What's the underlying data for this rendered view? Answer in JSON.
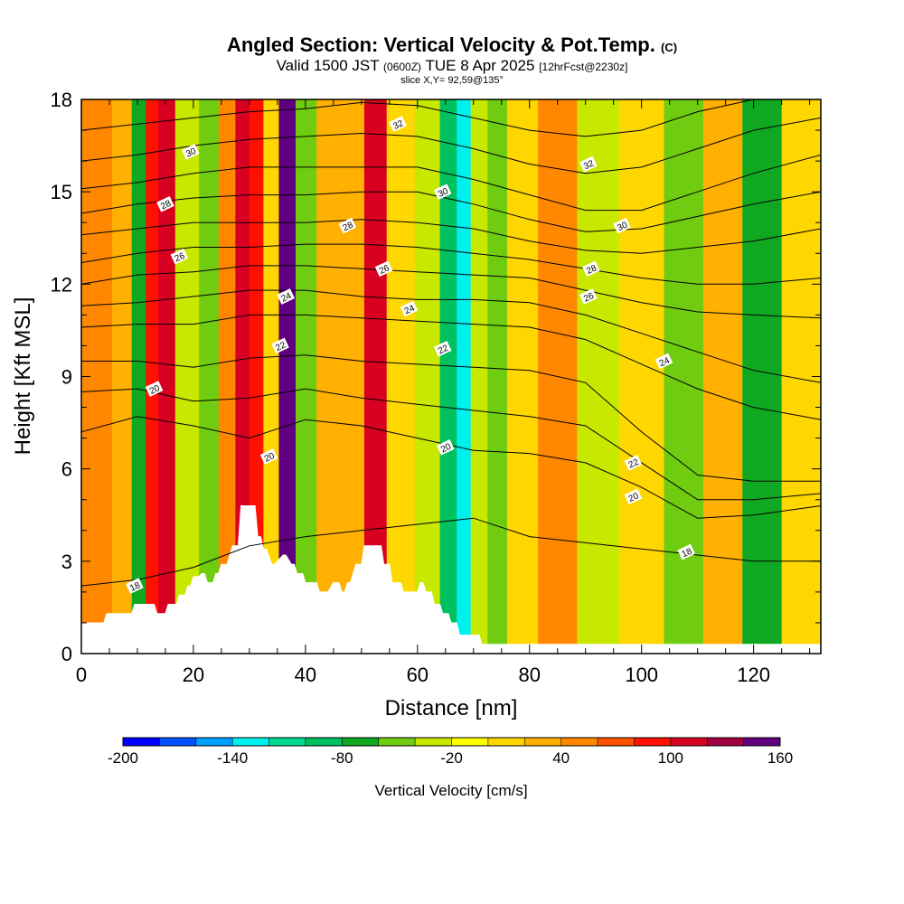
{
  "header": {
    "title": "Angled Section: Vertical Velocity & Pot.Temp.",
    "title_tag": "(C)",
    "valid_a": "Valid 1500 JST",
    "valid_b": "(0600Z)",
    "valid_c": "TUE 8 Apr 2025",
    "valid_d": "[12hrFcst@2230z]",
    "slice": "slice X,Y= 92,59@135°"
  },
  "chart_data": {
    "type": "heatmap",
    "xlabel": "Distance [nm]",
    "ylabel": "Height [Kft MSL]",
    "xlim": [
      0,
      132
    ],
    "ylim": [
      0,
      18
    ],
    "x_ticks": [
      0,
      20,
      40,
      60,
      80,
      100,
      120
    ],
    "y_ticks": [
      0,
      3,
      6,
      9,
      12,
      15,
      18
    ],
    "colorbar": {
      "title": "Vertical Velocity [cm/s]",
      "min": -200,
      "max": 160,
      "step": 20,
      "tick_labels": [
        -200,
        -140,
        -80,
        -20,
        40,
        100,
        160
      ],
      "colors": [
        "#0000ff",
        "#0050ff",
        "#00a0ff",
        "#00f0f0",
        "#00d890",
        "#00c060",
        "#10a820",
        "#70cc10",
        "#c8e800",
        "#ffff00",
        "#ffd700",
        "#ffb000",
        "#ff8800",
        "#ff5000",
        "#ff1000",
        "#d80020",
        "#a00040",
        "#600080"
      ]
    },
    "vertical_velocity_columns": [
      {
        "x": 3,
        "w_cm_s": 40
      },
      {
        "x": 8,
        "w_cm_s": 20
      },
      {
        "x": 10,
        "w_cm_s": -70
      },
      {
        "x": 13,
        "w_cm_s": 90
      },
      {
        "x": 14.5,
        "w_cm_s": 110
      },
      {
        "x": 19,
        "w_cm_s": -40
      },
      {
        "x": 23,
        "w_cm_s": -60
      },
      {
        "x": 26,
        "w_cm_s": 40
      },
      {
        "x": 29,
        "w_cm_s": 100
      },
      {
        "x": 31,
        "w_cm_s": 90
      },
      {
        "x": 34,
        "w_cm_s": 10
      },
      {
        "x": 36.5,
        "w_cm_s": 150
      },
      {
        "x": 40,
        "w_cm_s": -60
      },
      {
        "x": 44,
        "w_cm_s": 20
      },
      {
        "x": 49,
        "w_cm_s": 30
      },
      {
        "x": 52,
        "w_cm_s": 110
      },
      {
        "x": 57,
        "w_cm_s": 10
      },
      {
        "x": 62,
        "w_cm_s": -30
      },
      {
        "x": 66,
        "w_cm_s": -90
      },
      {
        "x": 68,
        "w_cm_s": -130
      },
      {
        "x": 71,
        "w_cm_s": -40
      },
      {
        "x": 74,
        "w_cm_s": -60
      },
      {
        "x": 78,
        "w_cm_s": 10
      },
      {
        "x": 85,
        "w_cm_s": 40
      },
      {
        "x": 92,
        "w_cm_s": -30
      },
      {
        "x": 100,
        "w_cm_s": 0
      },
      {
        "x": 108,
        "w_cm_s": -50
      },
      {
        "x": 114,
        "w_cm_s": 20
      },
      {
        "x": 122,
        "w_cm_s": -80
      },
      {
        "x": 128,
        "w_cm_s": 10
      }
    ],
    "potential_temperature_contours": [
      {
        "value": 18,
        "x": [
          0,
          10,
          20,
          30,
          40,
          50,
          60,
          70,
          80,
          90,
          100,
          110,
          120,
          132
        ],
        "y": [
          2.2,
          2.4,
          2.8,
          3.5,
          3.8,
          4.0,
          4.2,
          4.4,
          3.8,
          3.6,
          3.4,
          3.2,
          3.0,
          3.0
        ]
      },
      {
        "value": 20,
        "x": [
          0,
          10,
          20,
          30,
          40,
          50,
          60,
          70,
          80,
          90,
          100,
          110,
          120,
          132
        ],
        "y": [
          7.2,
          7.7,
          7.4,
          7.0,
          7.6,
          7.4,
          7.0,
          6.6,
          6.5,
          6.2,
          5.4,
          4.4,
          4.5,
          4.8
        ]
      },
      {
        "value": 20,
        "x": [
          0,
          10,
          20,
          30,
          40,
          50,
          60,
          70,
          80,
          90,
          100,
          110,
          120,
          132
        ],
        "y": [
          8.5,
          8.6,
          8.2,
          8.3,
          8.6,
          8.3,
          8.1,
          7.9,
          7.7,
          7.4,
          6.2,
          5.0,
          5.0,
          5.2
        ]
      },
      {
        "value": 22,
        "x": [
          0,
          10,
          20,
          30,
          40,
          50,
          60,
          70,
          80,
          90,
          100,
          110,
          120,
          132
        ],
        "y": [
          9.5,
          9.5,
          9.3,
          9.6,
          9.7,
          9.5,
          9.4,
          9.3,
          9.2,
          8.8,
          7.2,
          5.8,
          5.6,
          5.6
        ]
      },
      {
        "value": 24,
        "x": [
          0,
          10,
          20,
          30,
          40,
          50,
          60,
          70,
          80,
          90,
          100,
          110,
          120,
          132
        ],
        "y": [
          10.6,
          10.7,
          10.7,
          11.0,
          11.0,
          10.9,
          10.8,
          10.7,
          10.6,
          10.2,
          9.4,
          8.6,
          8.0,
          7.6
        ]
      },
      {
        "value": 24,
        "x": [
          0,
          10,
          20,
          30,
          40,
          50,
          60,
          70,
          80,
          90,
          100,
          110,
          120,
          132
        ],
        "y": [
          11.3,
          11.4,
          11.6,
          11.8,
          11.8,
          11.6,
          11.5,
          11.5,
          11.4,
          11.0,
          10.4,
          9.8,
          9.2,
          8.8
        ]
      },
      {
        "value": 26,
        "x": [
          0,
          10,
          20,
          30,
          40,
          50,
          60,
          70,
          80,
          90,
          100,
          110,
          120,
          132
        ],
        "y": [
          12.0,
          12.3,
          12.4,
          12.6,
          12.6,
          12.5,
          12.4,
          12.3,
          12.2,
          11.8,
          11.4,
          11.1,
          11.0,
          10.9
        ]
      },
      {
        "value": 26,
        "x": [
          0,
          10,
          20,
          30,
          40,
          50,
          60,
          70,
          80,
          90,
          100,
          110,
          120,
          132
        ],
        "y": [
          12.7,
          13.0,
          13.2,
          13.2,
          13.3,
          13.3,
          13.2,
          13.0,
          12.8,
          12.5,
          12.2,
          12.0,
          12.0,
          12.2
        ]
      },
      {
        "value": 28,
        "x": [
          0,
          10,
          20,
          30,
          40,
          50,
          60,
          70,
          80,
          90,
          100,
          110,
          120,
          132
        ],
        "y": [
          13.6,
          13.8,
          14.0,
          14.0,
          14.0,
          14.1,
          14.0,
          13.8,
          13.4,
          13.1,
          13.0,
          13.2,
          13.4,
          13.8
        ]
      },
      {
        "value": 28,
        "x": [
          0,
          10,
          20,
          30,
          40,
          50,
          60,
          70,
          80,
          90,
          100,
          110,
          120,
          132
        ],
        "y": [
          14.3,
          14.6,
          14.8,
          14.9,
          14.9,
          15.0,
          15.0,
          14.6,
          14.1,
          13.7,
          13.8,
          14.2,
          14.6,
          15.0
        ]
      },
      {
        "value": 30,
        "x": [
          0,
          10,
          20,
          30,
          40,
          50,
          60,
          70,
          80,
          90,
          100,
          110,
          120,
          132
        ],
        "y": [
          15.1,
          15.3,
          15.6,
          15.8,
          15.8,
          15.8,
          15.8,
          15.4,
          14.9,
          14.4,
          14.4,
          15.0,
          15.6,
          16.2
        ]
      },
      {
        "value": 30,
        "x": [
          0,
          10,
          20,
          30,
          40,
          50,
          60,
          70,
          80,
          90,
          100,
          110,
          120,
          132
        ],
        "y": [
          16.0,
          16.2,
          16.5,
          16.7,
          16.8,
          16.9,
          16.8,
          16.4,
          15.9,
          15.6,
          15.8,
          16.4,
          17.0,
          17.4
        ]
      },
      {
        "value": 32,
        "x": [
          0,
          10,
          20,
          30,
          40,
          50,
          60,
          70,
          80,
          90,
          100,
          110,
          120,
          132
        ],
        "y": [
          17.0,
          17.2,
          17.4,
          17.6,
          17.7,
          17.9,
          17.8,
          17.4,
          17.0,
          16.8,
          17.0,
          17.6,
          18.0,
          18.0
        ]
      }
    ],
    "contour_labels": [
      {
        "text": "18",
        "x": 9.5,
        "y": 2.2
      },
      {
        "text": "18",
        "x": 108,
        "y": 3.3
      },
      {
        "text": "20",
        "x": 33.5,
        "y": 6.4
      },
      {
        "text": "20",
        "x": 65,
        "y": 6.7
      },
      {
        "text": "20",
        "x": 98.5,
        "y": 5.1
      },
      {
        "text": "20",
        "x": 13,
        "y": 8.6
      },
      {
        "text": "22",
        "x": 35.5,
        "y": 10.0
      },
      {
        "text": "22",
        "x": 64.5,
        "y": 9.9
      },
      {
        "text": "22",
        "x": 98.5,
        "y": 6.2
      },
      {
        "text": "24",
        "x": 36.5,
        "y": 11.6
      },
      {
        "text": "24",
        "x": 58.5,
        "y": 11.2
      },
      {
        "text": "24",
        "x": 104,
        "y": 9.5
      },
      {
        "text": "26",
        "x": 17.5,
        "y": 12.9
      },
      {
        "text": "26",
        "x": 54,
        "y": 12.5
      },
      {
        "text": "26",
        "x": 90.5,
        "y": 11.6
      },
      {
        "text": "28",
        "x": 15,
        "y": 14.6
      },
      {
        "text": "28",
        "x": 47.5,
        "y": 13.9
      },
      {
        "text": "28",
        "x": 91,
        "y": 12.5
      },
      {
        "text": "30",
        "x": 19.5,
        "y": 16.3
      },
      {
        "text": "30",
        "x": 64.5,
        "y": 15.0
      },
      {
        "text": "30",
        "x": 96.5,
        "y": 13.9
      },
      {
        "text": "32",
        "x": 56.5,
        "y": 17.2
      },
      {
        "text": "32",
        "x": 90.5,
        "y": 15.9
      }
    ],
    "terrain": {
      "x": [
        0,
        4,
        4.5,
        9,
        9.5,
        13,
        13.5,
        15,
        15.5,
        17,
        17.5,
        18.5,
        19,
        19.5,
        20,
        21,
        21.5,
        22,
        22.5,
        23.5,
        24,
        24.5,
        25,
        26,
        27,
        28,
        28.5,
        31,
        31.5,
        32,
        32.5,
        33,
        34,
        34.5,
        36,
        36.5,
        37.5,
        38,
        38.5,
        39.5,
        40,
        42,
        42.5,
        44,
        45,
        46,
        46.5,
        47,
        47.5,
        48,
        49,
        50,
        50.5,
        53.5,
        54,
        55,
        55.5,
        57,
        57.5,
        60,
        60.5,
        61,
        61.5,
        62.5,
        63,
        64,
        64.5,
        65.5,
        66,
        67,
        67.5,
        71,
        71.5,
        132
      ],
      "y": [
        1.0,
        1.0,
        1.3,
        1.3,
        1.6,
        1.6,
        1.3,
        1.3,
        1.6,
        1.6,
        1.9,
        1.9,
        2.2,
        2.2,
        2.5,
        2.5,
        2.6,
        2.6,
        2.3,
        2.3,
        2.6,
        2.6,
        2.9,
        2.9,
        3.5,
        3.5,
        4.8,
        4.8,
        3.8,
        3.8,
        3.4,
        3.4,
        2.9,
        2.9,
        3.2,
        3.2,
        2.9,
        2.9,
        2.6,
        2.6,
        2.3,
        2.3,
        2.0,
        2.0,
        2.3,
        2.3,
        2.0,
        2.0,
        2.3,
        2.3,
        2.9,
        2.9,
        3.5,
        3.5,
        2.9,
        2.9,
        2.3,
        2.3,
        2.0,
        2.0,
        2.3,
        2.3,
        2.0,
        2.0,
        1.6,
        1.6,
        1.3,
        1.3,
        1.0,
        1.0,
        0.6,
        0.6,
        0.3,
        0.3
      ]
    }
  }
}
